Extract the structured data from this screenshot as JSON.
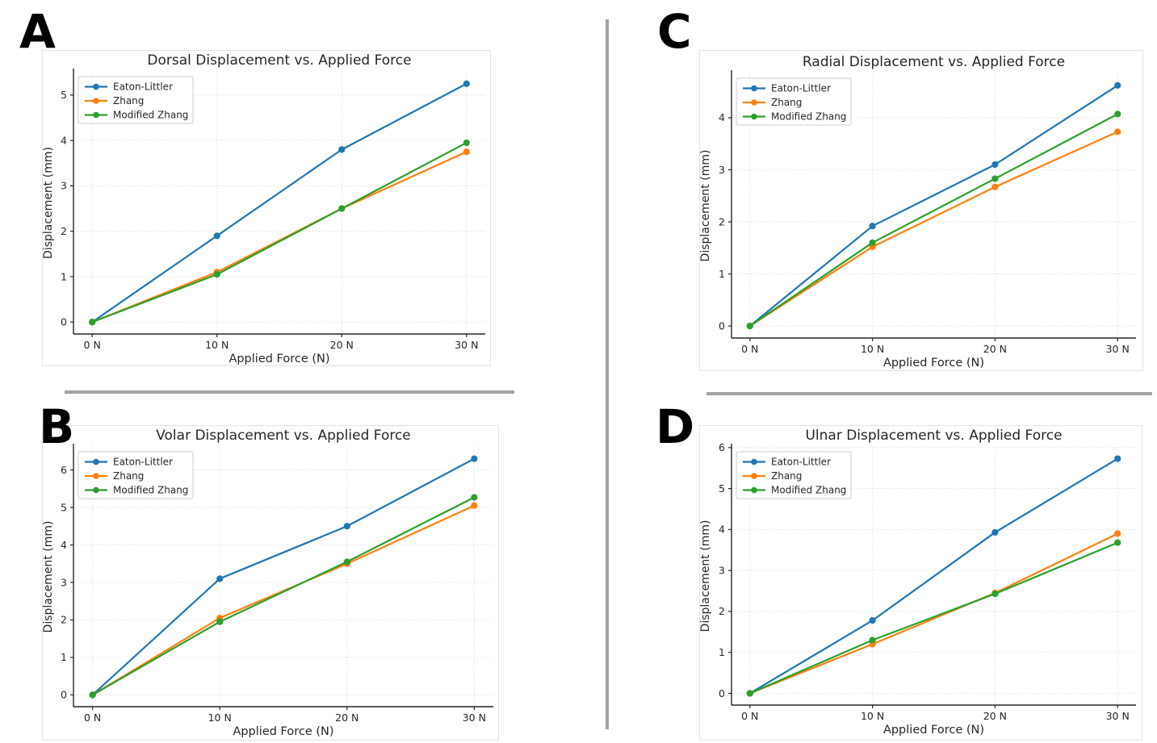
{
  "panels": [
    {
      "label": "A",
      "chart_index": 0
    },
    {
      "label": "B",
      "chart_index": 1
    },
    {
      "label": "C",
      "chart_index": 2
    },
    {
      "label": "D",
      "chart_index": 3
    }
  ],
  "colors": {
    "eaton_littler": "#1f77b4",
    "zhang": "#ff7f0e",
    "modified_zhang": "#2ca02c",
    "axis": "#262626",
    "grid": "#e2e2e2",
    "title_text": "#262626",
    "divider": "#a3a3a3",
    "legend_border": "#cccccc"
  },
  "legend": {
    "entries": [
      "Eaton-Littler",
      "Zhang",
      "Modified Zhang"
    ],
    "position": "upper left"
  },
  "chart_data": [
    {
      "type": "line",
      "panel": "A",
      "title": "Dorsal Displacement vs. Applied Force",
      "xlabel": "Applied Force (N)",
      "ylabel": "Displacement (mm)",
      "x": [
        0,
        10,
        20,
        30
      ],
      "x_tick_labels": [
        "0 N",
        "10 N",
        "20 N",
        "30 N"
      ],
      "y_ticks": [
        0,
        1,
        2,
        3,
        4,
        5
      ],
      "xlim": [
        -1.5,
        31.5
      ],
      "ylim": [
        -0.26,
        5.51
      ],
      "grid": true,
      "legend_position": "upper left",
      "series": [
        {
          "name": "Eaton-Littler",
          "color": "#1f77b4",
          "values": [
            0,
            1.9,
            3.8,
            5.25
          ]
        },
        {
          "name": "Zhang",
          "color": "#ff7f0e",
          "values": [
            0,
            1.1,
            2.5,
            3.75
          ]
        },
        {
          "name": "Modified Zhang",
          "color": "#2ca02c",
          "values": [
            0,
            1.05,
            2.5,
            3.95
          ]
        }
      ]
    },
    {
      "type": "line",
      "panel": "B",
      "title": "Volar Displacement vs. Applied Force",
      "xlabel": "Applied Force (N)",
      "ylabel": "Displacement (mm)",
      "x": [
        0,
        10,
        20,
        30
      ],
      "x_tick_labels": [
        "0 N",
        "10 N",
        "20 N",
        "30 N"
      ],
      "y_ticks": [
        0,
        1,
        2,
        3,
        4,
        5,
        6
      ],
      "xlim": [
        -1.5,
        31.5
      ],
      "ylim": [
        -0.32,
        6.62
      ],
      "grid": true,
      "legend_position": "upper left",
      "series": [
        {
          "name": "Eaton-Littler",
          "color": "#1f77b4",
          "values": [
            0,
            3.1,
            4.5,
            6.3
          ]
        },
        {
          "name": "Zhang",
          "color": "#ff7f0e",
          "values": [
            0,
            2.05,
            3.5,
            5.05
          ]
        },
        {
          "name": "Modified Zhang",
          "color": "#2ca02c",
          "values": [
            0,
            1.95,
            3.55,
            5.27
          ]
        }
      ]
    },
    {
      "type": "line",
      "panel": "C",
      "title": "Radial Displacement vs. Applied Force",
      "xlabel": "Applied Force (N)",
      "ylabel": "Displacement (mm)",
      "x": [
        0,
        10,
        20,
        30
      ],
      "x_tick_labels": [
        "0 N",
        "10 N",
        "20 N",
        "30 N"
      ],
      "y_ticks": [
        0,
        1,
        2,
        3,
        4
      ],
      "xlim": [
        -1.5,
        31.5
      ],
      "ylim": [
        -0.23,
        4.85
      ],
      "grid": true,
      "legend_position": "upper left",
      "series": [
        {
          "name": "Eaton-Littler",
          "color": "#1f77b4",
          "values": [
            0,
            1.92,
            3.1,
            4.62
          ]
        },
        {
          "name": "Zhang",
          "color": "#ff7f0e",
          "values": [
            0,
            1.52,
            2.67,
            3.73
          ]
        },
        {
          "name": "Modified Zhang",
          "color": "#2ca02c",
          "values": [
            0,
            1.6,
            2.83,
            4.07
          ]
        }
      ]
    },
    {
      "type": "line",
      "panel": "D",
      "title": "Ulnar Displacement vs. Applied Force",
      "xlabel": "Applied Force (N)",
      "ylabel": "Displacement (mm)",
      "x": [
        0,
        10,
        20,
        30
      ],
      "x_tick_labels": [
        "0 N",
        "10 N",
        "20 N",
        "30 N"
      ],
      "y_ticks": [
        0,
        1,
        2,
        3,
        4,
        5,
        6
      ],
      "xlim": [
        -1.5,
        31.5
      ],
      "ylim": [
        -0.29,
        6.02
      ],
      "grid": true,
      "legend_position": "upper left",
      "series": [
        {
          "name": "Eaton-Littler",
          "color": "#1f77b4",
          "values": [
            0,
            1.78,
            3.93,
            5.73
          ]
        },
        {
          "name": "Zhang",
          "color": "#ff7f0e",
          "values": [
            0,
            1.2,
            2.45,
            3.9
          ]
        },
        {
          "name": "Modified Zhang",
          "color": "#2ca02c",
          "values": [
            0,
            1.3,
            2.43,
            3.68
          ]
        }
      ]
    }
  ]
}
